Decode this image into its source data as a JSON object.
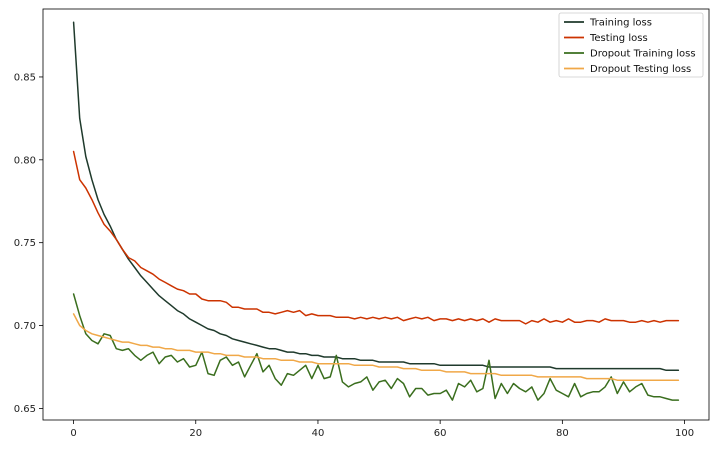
{
  "chart_data": {
    "type": "line",
    "title": "",
    "xlabel": "",
    "ylabel": "",
    "xlim": [
      -5,
      104
    ],
    "ylim": [
      0.643,
      0.891
    ],
    "xticks": [
      0,
      20,
      40,
      60,
      80,
      100
    ],
    "yticks": [
      0.65,
      0.7,
      0.75,
      0.8,
      0.85
    ],
    "ytick_labels": [
      "0.65",
      "0.70",
      "0.75",
      "0.80",
      "0.85"
    ],
    "grid": false,
    "legend_position": "top-right",
    "series": [
      {
        "name": "Training loss",
        "color": "#1f3a2c",
        "x_start": 0,
        "values": [
          0.883,
          0.825,
          0.802,
          0.788,
          0.776,
          0.767,
          0.76,
          0.752,
          0.746,
          0.74,
          0.735,
          0.73,
          0.726,
          0.722,
          0.718,
          0.715,
          0.712,
          0.709,
          0.707,
          0.704,
          0.702,
          0.7,
          0.698,
          0.697,
          0.695,
          0.694,
          0.692,
          0.691,
          0.69,
          0.689,
          0.688,
          0.687,
          0.686,
          0.686,
          0.685,
          0.684,
          0.684,
          0.683,
          0.683,
          0.682,
          0.682,
          0.681,
          0.681,
          0.681,
          0.68,
          0.68,
          0.68,
          0.679,
          0.679,
          0.679,
          0.678,
          0.678,
          0.678,
          0.678,
          0.678,
          0.677,
          0.677,
          0.677,
          0.677,
          0.677,
          0.676,
          0.676,
          0.676,
          0.676,
          0.676,
          0.676,
          0.676,
          0.676,
          0.675,
          0.675,
          0.675,
          0.675,
          0.675,
          0.675,
          0.675,
          0.675,
          0.675,
          0.675,
          0.675,
          0.674,
          0.674,
          0.674,
          0.674,
          0.674,
          0.674,
          0.674,
          0.674,
          0.674,
          0.674,
          0.674,
          0.674,
          0.674,
          0.674,
          0.674,
          0.674,
          0.674,
          0.674,
          0.673,
          0.673,
          0.673
        ]
      },
      {
        "name": "Testing loss",
        "color": "#cc3300",
        "x_start": 0,
        "values": [
          0.805,
          0.788,
          0.783,
          0.776,
          0.768,
          0.761,
          0.757,
          0.752,
          0.746,
          0.741,
          0.739,
          0.735,
          0.733,
          0.731,
          0.728,
          0.726,
          0.724,
          0.722,
          0.721,
          0.719,
          0.719,
          0.716,
          0.715,
          0.715,
          0.715,
          0.714,
          0.711,
          0.711,
          0.71,
          0.71,
          0.71,
          0.708,
          0.708,
          0.707,
          0.708,
          0.709,
          0.708,
          0.709,
          0.706,
          0.707,
          0.706,
          0.706,
          0.706,
          0.705,
          0.705,
          0.705,
          0.704,
          0.705,
          0.704,
          0.705,
          0.704,
          0.705,
          0.704,
          0.705,
          0.703,
          0.704,
          0.705,
          0.704,
          0.705,
          0.703,
          0.704,
          0.704,
          0.703,
          0.704,
          0.703,
          0.704,
          0.703,
          0.704,
          0.702,
          0.704,
          0.703,
          0.703,
          0.703,
          0.703,
          0.701,
          0.703,
          0.702,
          0.704,
          0.702,
          0.703,
          0.702,
          0.704,
          0.702,
          0.702,
          0.703,
          0.703,
          0.702,
          0.704,
          0.703,
          0.703,
          0.703,
          0.702,
          0.702,
          0.703,
          0.702,
          0.703,
          0.702,
          0.703,
          0.703,
          0.703
        ]
      },
      {
        "name": "Dropout Training loss",
        "color": "#3a6e1e",
        "x_start": 0,
        "values": [
          0.719,
          0.706,
          0.695,
          0.691,
          0.689,
          0.695,
          0.694,
          0.686,
          0.685,
          0.686,
          0.682,
          0.679,
          0.682,
          0.684,
          0.677,
          0.681,
          0.682,
          0.678,
          0.68,
          0.675,
          0.676,
          0.684,
          0.671,
          0.67,
          0.679,
          0.681,
          0.676,
          0.678,
          0.669,
          0.676,
          0.683,
          0.672,
          0.676,
          0.668,
          0.664,
          0.671,
          0.67,
          0.673,
          0.676,
          0.668,
          0.676,
          0.668,
          0.669,
          0.682,
          0.666,
          0.663,
          0.665,
          0.666,
          0.669,
          0.661,
          0.666,
          0.667,
          0.662,
          0.668,
          0.665,
          0.657,
          0.662,
          0.662,
          0.658,
          0.659,
          0.659,
          0.661,
          0.655,
          0.665,
          0.663,
          0.667,
          0.66,
          0.662,
          0.679,
          0.656,
          0.665,
          0.659,
          0.665,
          0.662,
          0.66,
          0.663,
          0.655,
          0.659,
          0.668,
          0.661,
          0.659,
          0.657,
          0.665,
          0.657,
          0.659,
          0.66,
          0.66,
          0.663,
          0.669,
          0.659,
          0.666,
          0.66,
          0.663,
          0.665,
          0.658,
          0.657,
          0.657,
          0.656,
          0.655,
          0.655
        ]
      },
      {
        "name": "Dropout Testing loss",
        "color": "#f0a848",
        "x_start": 0,
        "values": [
          0.707,
          0.7,
          0.697,
          0.695,
          0.694,
          0.693,
          0.692,
          0.691,
          0.69,
          0.69,
          0.689,
          0.688,
          0.688,
          0.687,
          0.687,
          0.686,
          0.686,
          0.685,
          0.685,
          0.685,
          0.684,
          0.684,
          0.684,
          0.683,
          0.683,
          0.682,
          0.682,
          0.682,
          0.681,
          0.681,
          0.681,
          0.68,
          0.68,
          0.68,
          0.679,
          0.679,
          0.679,
          0.678,
          0.678,
          0.678,
          0.677,
          0.677,
          0.677,
          0.677,
          0.677,
          0.677,
          0.676,
          0.676,
          0.676,
          0.676,
          0.675,
          0.675,
          0.675,
          0.675,
          0.674,
          0.674,
          0.674,
          0.673,
          0.673,
          0.673,
          0.673,
          0.672,
          0.672,
          0.672,
          0.672,
          0.671,
          0.671,
          0.671,
          0.671,
          0.671,
          0.67,
          0.67,
          0.67,
          0.67,
          0.67,
          0.67,
          0.669,
          0.669,
          0.669,
          0.669,
          0.669,
          0.669,
          0.669,
          0.669,
          0.668,
          0.668,
          0.668,
          0.668,
          0.668,
          0.667,
          0.667,
          0.667,
          0.667,
          0.667,
          0.667,
          0.667,
          0.667,
          0.667,
          0.667,
          0.667
        ]
      }
    ]
  }
}
